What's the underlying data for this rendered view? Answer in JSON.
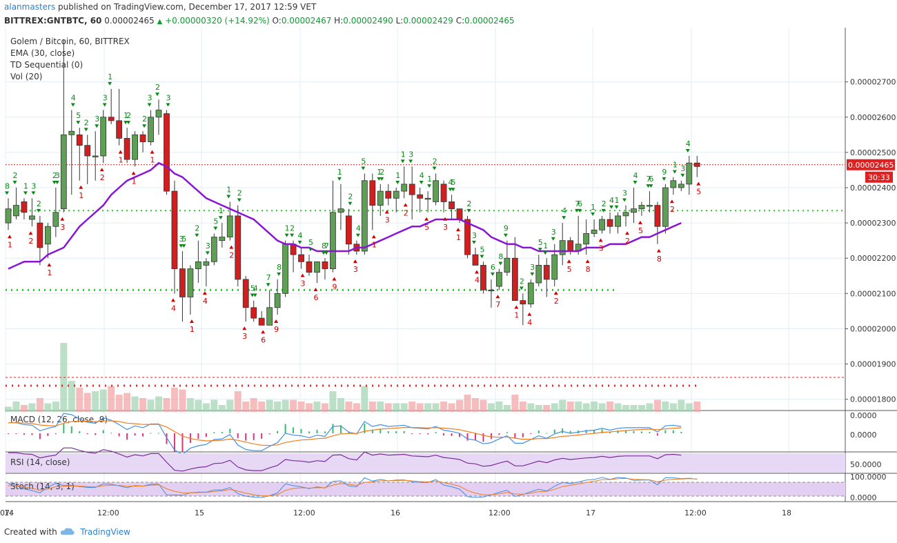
{
  "header": {
    "user": "alanmasters",
    "published_text": "published on TradingView.com, December 17, 2017 12:59 VET",
    "symbol": "BITTREX:GNTBTC, 60",
    "last": "0.00002465",
    "change": "+0.00000320 (+14.92%)",
    "o_label": "O:",
    "o": "0.00002467",
    "h_label": "H:",
    "h": "0.00002490",
    "l_label": "L:",
    "l": "0.00002429",
    "c_label": "C:",
    "c": "0.00002465"
  },
  "legend": [
    "Golem / Bitcoin, 60, BITTREX",
    "EMA (30, close)",
    "TD Sequential (0)",
    "Vol (20)"
  ],
  "price_axis": {
    "ticks": [
      "0.00002700",
      "0.00002600",
      "0.00002500",
      "0.00002400",
      "0.00002300",
      "0.00002200",
      "0.00002100",
      "0.00002000",
      "0.00001900",
      "0.00001800"
    ],
    "last_label": "0.00002465",
    "timer_label": "30:33"
  },
  "time_axis": {
    "ticks": [
      "14",
      "12:00",
      "15",
      "12:00",
      "16",
      "12:00",
      "17",
      "12:00",
      "18",
      "07:"
    ]
  },
  "macd_panel": {
    "label": "MACD (12, 26, close, 9)",
    "ticks": [
      "0.0000",
      "0.0000"
    ]
  },
  "rsi_panel": {
    "label": "RSI (14, close)",
    "ticks": [
      "50.0000"
    ]
  },
  "stoch_panel": {
    "label": "Stoch (14, 3, 1)",
    "ticks": [
      "100.0000",
      "0.0000"
    ]
  },
  "footer": {
    "created": "Created with",
    "brand": "TradingView"
  },
  "colors": {
    "up": "#5e9e55",
    "down": "#d11f1f",
    "ema": "#8a14d4",
    "td_buy": "#0a8a18",
    "td_sell": "#d40000",
    "rsi_band": "#e7d9f6",
    "macd_line": "#3f8ee8",
    "signal_line": "#f07d1c"
  },
  "chart_data": {
    "type": "candlestick",
    "title": "Golem / Bitcoin, 60, BITTREX",
    "y_range": [
      1.77e-05,
      2.85e-05
    ],
    "candles": [
      {
        "o": 2.3,
        "h": 2.37,
        "l": 2.28,
        "c": 2.34
      },
      {
        "o": 2.32,
        "h": 2.4,
        "l": 2.31,
        "c": 2.35
      },
      {
        "o": 2.36,
        "h": 2.37,
        "l": 2.31,
        "c": 2.33
      },
      {
        "o": 2.31,
        "h": 2.37,
        "l": 2.29,
        "c": 2.32
      },
      {
        "o": 2.3,
        "h": 2.32,
        "l": 2.18,
        "c": 2.23
      },
      {
        "o": 2.24,
        "h": 2.3,
        "l": 2.2,
        "c": 2.29
      },
      {
        "o": 2.29,
        "h": 2.4,
        "l": 2.26,
        "c": 2.33
      },
      {
        "o": 2.34,
        "h": 2.82,
        "l": 2.33,
        "c": 2.55
      },
      {
        "o": 2.55,
        "h": 2.62,
        "l": 2.38,
        "c": 2.56
      },
      {
        "o": 2.55,
        "h": 2.57,
        "l": 2.42,
        "c": 2.52
      },
      {
        "o": 2.52,
        "h": 2.55,
        "l": 2.41,
        "c": 2.49
      },
      {
        "o": 2.49,
        "h": 2.56,
        "l": 2.42,
        "c": 2.49
      },
      {
        "o": 2.49,
        "h": 2.62,
        "l": 2.47,
        "c": 2.6
      },
      {
        "o": 2.6,
        "h": 2.68,
        "l": 2.58,
        "c": 2.59
      },
      {
        "o": 2.59,
        "h": 2.68,
        "l": 2.52,
        "c": 2.54
      },
      {
        "o": 2.54,
        "h": 2.57,
        "l": 2.47,
        "c": 2.48
      },
      {
        "o": 2.48,
        "h": 2.56,
        "l": 2.46,
        "c": 2.55
      },
      {
        "o": 2.55,
        "h": 2.56,
        "l": 2.5,
        "c": 2.53
      },
      {
        "o": 2.53,
        "h": 2.62,
        "l": 2.52,
        "c": 2.6
      },
      {
        "o": 2.6,
        "h": 2.65,
        "l": 2.55,
        "c": 2.62
      },
      {
        "o": 2.61,
        "h": 2.62,
        "l": 2.38,
        "c": 2.39
      },
      {
        "o": 2.39,
        "h": 2.42,
        "l": 2.1,
        "c": 2.17
      },
      {
        "o": 2.17,
        "h": 2.22,
        "l": 2.02,
        "c": 2.09
      },
      {
        "o": 2.09,
        "h": 2.18,
        "l": 2.04,
        "c": 2.17
      },
      {
        "o": 2.17,
        "h": 2.25,
        "l": 2.13,
        "c": 2.19
      },
      {
        "o": 2.18,
        "h": 2.2,
        "l": 2.12,
        "c": 2.19
      },
      {
        "o": 2.19,
        "h": 2.27,
        "l": 2.18,
        "c": 2.26
      },
      {
        "o": 2.25,
        "h": 2.3,
        "l": 2.23,
        "c": 2.26
      },
      {
        "o": 2.26,
        "h": 2.36,
        "l": 2.25,
        "c": 2.32
      },
      {
        "o": 2.32,
        "h": 2.35,
        "l": 2.12,
        "c": 2.14
      },
      {
        "o": 2.14,
        "h": 2.15,
        "l": 2.02,
        "c": 2.06
      },
      {
        "o": 2.06,
        "h": 2.08,
        "l": 2.02,
        "c": 2.03
      },
      {
        "o": 2.03,
        "h": 2.05,
        "l": 2.01,
        "c": 2.01
      },
      {
        "o": 2.01,
        "h": 2.11,
        "l": 2.01,
        "c": 2.06
      },
      {
        "o": 2.06,
        "h": 2.14,
        "l": 2.04,
        "c": 2.1
      },
      {
        "o": 2.1,
        "h": 2.25,
        "l": 2.09,
        "c": 2.24
      },
      {
        "o": 2.24,
        "h": 2.25,
        "l": 2.16,
        "c": 2.21
      },
      {
        "o": 2.21,
        "h": 2.23,
        "l": 2.17,
        "c": 2.19
      },
      {
        "o": 2.19,
        "h": 2.21,
        "l": 2.15,
        "c": 2.16
      },
      {
        "o": 2.16,
        "h": 2.19,
        "l": 2.13,
        "c": 2.19
      },
      {
        "o": 2.19,
        "h": 2.2,
        "l": 2.14,
        "c": 2.17
      },
      {
        "o": 2.17,
        "h": 2.42,
        "l": 2.16,
        "c": 2.33
      },
      {
        "o": 2.33,
        "h": 2.41,
        "l": 2.28,
        "c": 2.34
      },
      {
        "o": 2.32,
        "h": 2.34,
        "l": 2.21,
        "c": 2.24
      },
      {
        "o": 2.24,
        "h": 2.25,
        "l": 2.21,
        "c": 2.22
      },
      {
        "o": 2.22,
        "h": 2.44,
        "l": 2.21,
        "c": 2.42
      },
      {
        "o": 2.42,
        "h": 2.44,
        "l": 2.28,
        "c": 2.35
      },
      {
        "o": 2.35,
        "h": 2.41,
        "l": 2.32,
        "c": 2.39
      },
      {
        "o": 2.39,
        "h": 2.41,
        "l": 2.35,
        "c": 2.37
      },
      {
        "o": 2.37,
        "h": 2.4,
        "l": 2.33,
        "c": 2.39
      },
      {
        "o": 2.39,
        "h": 2.46,
        "l": 2.37,
        "c": 2.41
      },
      {
        "o": 2.41,
        "h": 2.46,
        "l": 2.31,
        "c": 2.38
      },
      {
        "o": 2.38,
        "h": 2.4,
        "l": 2.33,
        "c": 2.37
      },
      {
        "o": 2.37,
        "h": 2.39,
        "l": 2.33,
        "c": 2.37
      },
      {
        "o": 2.36,
        "h": 2.44,
        "l": 2.35,
        "c": 2.42
      },
      {
        "o": 2.41,
        "h": 2.42,
        "l": 2.33,
        "c": 2.36
      },
      {
        "o": 2.36,
        "h": 2.38,
        "l": 2.31,
        "c": 2.34
      },
      {
        "o": 2.34,
        "h": 2.34,
        "l": 2.3,
        "c": 2.31
      },
      {
        "o": 2.31,
        "h": 2.32,
        "l": 2.2,
        "c": 2.21
      },
      {
        "o": 2.21,
        "h": 2.23,
        "l": 2.18,
        "c": 2.18
      },
      {
        "o": 2.18,
        "h": 2.19,
        "l": 2.1,
        "c": 2.11
      },
      {
        "o": 2.11,
        "h": 2.14,
        "l": 2.06,
        "c": 2.11
      },
      {
        "o": 2.12,
        "h": 2.17,
        "l": 2.11,
        "c": 2.16
      },
      {
        "o": 2.16,
        "h": 2.25,
        "l": 2.15,
        "c": 2.2
      },
      {
        "o": 2.2,
        "h": 2.26,
        "l": 2.08,
        "c": 2.08
      },
      {
        "o": 2.08,
        "h": 2.1,
        "l": 2.01,
        "c": 2.07
      },
      {
        "o": 2.07,
        "h": 2.14,
        "l": 2.06,
        "c": 2.13
      },
      {
        "o": 2.13,
        "h": 2.21,
        "l": 2.12,
        "c": 2.18
      },
      {
        "o": 2.18,
        "h": 2.2,
        "l": 2.09,
        "c": 2.14
      },
      {
        "o": 2.14,
        "h": 2.24,
        "l": 2.12,
        "c": 2.21
      },
      {
        "o": 2.21,
        "h": 2.3,
        "l": 2.18,
        "c": 2.25
      },
      {
        "o": 2.25,
        "h": 2.26,
        "l": 2.21,
        "c": 2.22
      },
      {
        "o": 2.22,
        "h": 2.32,
        "l": 2.21,
        "c": 2.24
      },
      {
        "o": 2.24,
        "h": 2.31,
        "l": 2.21,
        "c": 2.27
      },
      {
        "o": 2.27,
        "h": 2.31,
        "l": 2.26,
        "c": 2.28
      },
      {
        "o": 2.28,
        "h": 2.32,
        "l": 2.27,
        "c": 2.31
      },
      {
        "o": 2.31,
        "h": 2.33,
        "l": 2.27,
        "c": 2.29
      },
      {
        "o": 2.29,
        "h": 2.33,
        "l": 2.27,
        "c": 2.32
      },
      {
        "o": 2.32,
        "h": 2.35,
        "l": 2.29,
        "c": 2.33
      },
      {
        "o": 2.33,
        "h": 2.4,
        "l": 2.3,
        "c": 2.34
      },
      {
        "o": 2.34,
        "h": 2.36,
        "l": 2.32,
        "c": 2.35
      },
      {
        "o": 2.35,
        "h": 2.39,
        "l": 2.33,
        "c": 2.35
      },
      {
        "o": 2.35,
        "h": 2.36,
        "l": 2.24,
        "c": 2.29
      },
      {
        "o": 2.29,
        "h": 2.41,
        "l": 2.27,
        "c": 2.4
      },
      {
        "o": 2.4,
        "h": 2.43,
        "l": 2.38,
        "c": 2.42
      },
      {
        "o": 2.4,
        "h": 2.42,
        "l": 2.39,
        "c": 2.41
      },
      {
        "o": 2.41,
        "h": 2.49,
        "l": 2.38,
        "c": 2.47
      },
      {
        "o": 2.47,
        "h": 2.49,
        "l": 2.43,
        "c": 2.46
      }
    ],
    "ema": [
      2.17,
      2.18,
      2.19,
      2.19,
      2.19,
      2.21,
      2.22,
      2.23,
      2.26,
      2.29,
      2.31,
      2.33,
      2.35,
      2.38,
      2.4,
      2.42,
      2.43,
      2.44,
      2.45,
      2.47,
      2.46,
      2.44,
      2.43,
      2.41,
      2.39,
      2.37,
      2.36,
      2.35,
      2.34,
      2.33,
      2.32,
      2.31,
      2.29,
      2.27,
      2.25,
      2.24,
      2.24,
      2.23,
      2.23,
      2.22,
      2.22,
      2.22,
      2.22,
      2.22,
      2.23,
      2.23,
      2.24,
      2.25,
      2.26,
      2.27,
      2.28,
      2.29,
      2.29,
      2.3,
      2.31,
      2.31,
      2.31,
      2.31,
      2.3,
      2.29,
      2.28,
      2.26,
      2.25,
      2.24,
      2.24,
      2.23,
      2.23,
      2.22,
      2.22,
      2.22,
      2.22,
      2.22,
      2.22,
      2.23,
      2.23,
      2.23,
      2.24,
      2.24,
      2.24,
      2.25,
      2.26,
      2.26,
      2.27,
      2.28,
      2.29,
      2.3
    ],
    "volume": [
      3,
      6,
      4,
      5,
      8,
      5,
      6,
      40,
      18,
      14,
      11,
      12,
      13,
      15,
      10,
      11,
      9,
      8,
      7,
      9,
      8,
      14,
      13,
      8,
      7,
      5,
      7,
      4,
      7,
      12,
      6,
      8,
      6,
      7,
      6,
      7,
      7,
      6,
      5,
      6,
      5,
      12,
      8,
      6,
      5,
      15,
      6,
      6,
      5,
      5,
      5,
      6,
      5,
      5,
      5,
      6,
      5,
      7,
      10,
      8,
      7,
      5,
      6,
      4,
      10,
      6,
      5,
      4,
      4,
      5,
      7,
      6,
      6,
      5,
      6,
      5,
      6,
      5,
      4,
      4,
      4,
      5,
      7,
      6,
      5,
      7,
      5,
      6
    ],
    "td_setup_labels": [
      "8",
      "1",
      "2",
      "1",
      "2",
      "3",
      "2",
      "1",
      "2",
      "3",
      "3",
      "4",
      "5",
      "1",
      "2",
      "3",
      "2",
      "3",
      "1",
      "1",
      "1",
      "2",
      "1",
      "2",
      "3",
      "1",
      "2",
      "3",
      "4",
      "5",
      "3",
      "1",
      "2",
      "3",
      "4",
      "5",
      "1",
      "2",
      "1",
      "2",
      "3",
      "4",
      "5",
      "6",
      "7",
      "8",
      "9",
      "1",
      "2",
      "3",
      "4",
      "5",
      "6",
      "7",
      "8",
      "9",
      "1",
      "2",
      "3",
      "4",
      "5",
      "1",
      "1",
      "2",
      "3",
      "1",
      "1",
      "2",
      "3",
      "4",
      "5",
      "1",
      "2",
      "3",
      "4",
      "5",
      "1",
      "2",
      "3",
      "4",
      "5",
      "6",
      "7",
      "8",
      "9",
      "1",
      "2",
      "3",
      "4",
      "5",
      "1",
      "2",
      "3",
      "4",
      "5",
      "6",
      "7",
      "8",
      "1",
      "2",
      "3",
      "4",
      "1",
      "2",
      "3",
      "4",
      "5",
      "6",
      "7",
      "8",
      "9",
      "1",
      "2",
      "3",
      "4",
      "5"
    ],
    "support_levels": [
      2.335e-05,
      2.11e-05
    ],
    "resistance_level": 2.465e-05
  }
}
